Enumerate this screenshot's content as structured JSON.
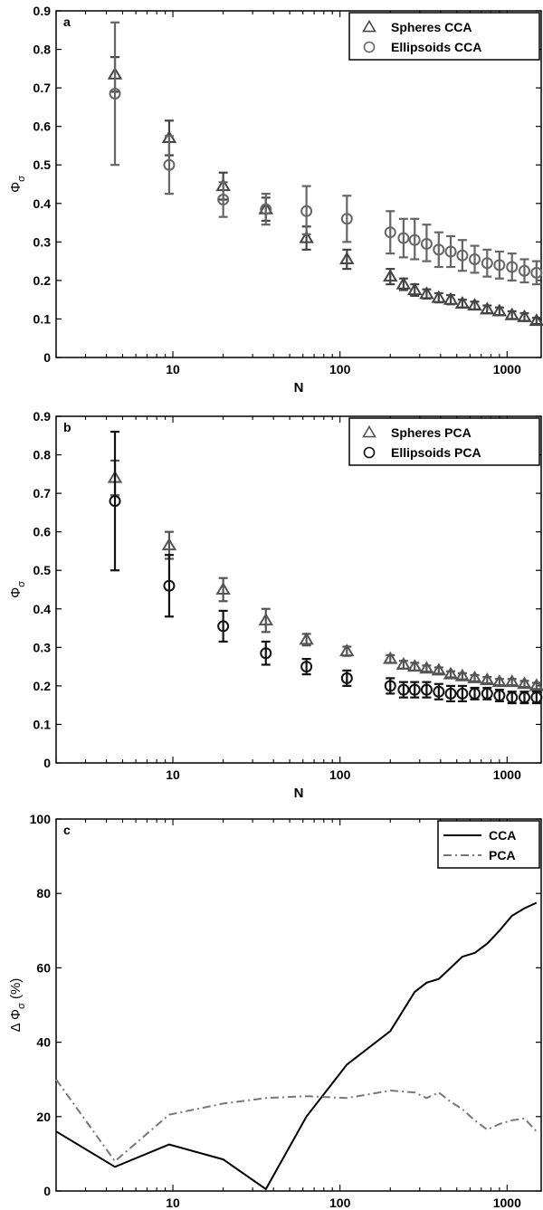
{
  "chart_data": [
    {
      "panel_label": "a",
      "type": "scatter",
      "xscale": "log",
      "xlim": [
        2,
        1600
      ],
      "ylim": [
        0,
        0.9
      ],
      "xlabel": "N",
      "ylabel_main": "Φ",
      "ylabel_sub": "σ",
      "xticks": [
        10,
        100,
        1000
      ],
      "xtick_labels": [
        "10",
        "100",
        "1000"
      ],
      "yticks": [
        0,
        0.1,
        0.2,
        0.3,
        0.4,
        0.5,
        0.6,
        0.7,
        0.8,
        0.9
      ],
      "ytick_labels": [
        "0",
        "0.1",
        "0.2",
        "0.3",
        "0.4",
        "0.5",
        "0.6",
        "0.7",
        "0.8",
        "0.9"
      ],
      "legend_position": "top-right",
      "grid": false,
      "series": [
        {
          "name": "Spheres CCA",
          "marker": "triangle",
          "color": "#444444",
          "x": [
            4.5,
            9.5,
            20,
            36,
            63,
            110,
            200,
            240,
            280,
            330,
            390,
            460,
            540,
            640,
            760,
            900,
            1070,
            1270,
            1500
          ],
          "y": [
            0.735,
            0.57,
            0.445,
            0.385,
            0.31,
            0.255,
            0.21,
            0.19,
            0.175,
            0.165,
            0.155,
            0.15,
            0.14,
            0.135,
            0.125,
            0.12,
            0.11,
            0.105,
            0.095
          ],
          "err": [
            0.045,
            0.045,
            0.035,
            0.03,
            0.03,
            0.025,
            0.02,
            0.015,
            0.015,
            0.012,
            0.012,
            0.012,
            0.01,
            0.01,
            0.01,
            0.01,
            0.01,
            0.01,
            0.008
          ]
        },
        {
          "name": "Ellipsoids CCA",
          "marker": "circle",
          "color": "#666666",
          "x": [
            4.5,
            9.5,
            20,
            36,
            63,
            110,
            200,
            240,
            280,
            330,
            390,
            460,
            540,
            640,
            760,
            900,
            1070,
            1270,
            1500
          ],
          "y": [
            0.685,
            0.5,
            0.41,
            0.385,
            0.38,
            0.36,
            0.325,
            0.31,
            0.305,
            0.295,
            0.28,
            0.275,
            0.265,
            0.255,
            0.245,
            0.24,
            0.235,
            0.225,
            0.22
          ],
          "err_low": [
            0.185,
            0.075,
            0.045,
            0.04,
            0.06,
            0.06,
            0.055,
            0.05,
            0.05,
            0.045,
            0.045,
            0.04,
            0.04,
            0.035,
            0.035,
            0.035,
            0.035,
            0.03,
            0.03
          ],
          "err_high": [
            0.185,
            0.075,
            0.045,
            0.04,
            0.065,
            0.06,
            0.055,
            0.05,
            0.055,
            0.05,
            0.045,
            0.04,
            0.04,
            0.035,
            0.035,
            0.035,
            0.035,
            0.03,
            0.03
          ]
        }
      ]
    },
    {
      "panel_label": "b",
      "type": "scatter",
      "xscale": "log",
      "xlim": [
        2,
        1600
      ],
      "ylim": [
        0,
        0.9
      ],
      "xlabel": "N",
      "ylabel_main": "Φ",
      "ylabel_sub": "σ",
      "xticks": [
        10,
        100,
        1000
      ],
      "xtick_labels": [
        "10",
        "100",
        "1000"
      ],
      "yticks": [
        0,
        0.1,
        0.2,
        0.3,
        0.4,
        0.5,
        0.6,
        0.7,
        0.8,
        0.9
      ],
      "ytick_labels": [
        "0",
        "0.1",
        "0.2",
        "0.3",
        "0.4",
        "0.5",
        "0.6",
        "0.7",
        "0.8",
        "0.9"
      ],
      "legend_position": "top-right",
      "grid": false,
      "series": [
        {
          "name": "Spheres PCA",
          "marker": "triangle",
          "color": "#555555",
          "x": [
            4.5,
            9.5,
            20,
            36,
            63,
            110,
            200,
            240,
            280,
            330,
            390,
            460,
            540,
            640,
            760,
            900,
            1070,
            1270,
            1500
          ],
          "y": [
            0.74,
            0.565,
            0.45,
            0.37,
            0.32,
            0.29,
            0.27,
            0.255,
            0.25,
            0.245,
            0.24,
            0.23,
            0.225,
            0.22,
            0.215,
            0.21,
            0.21,
            0.205,
            0.2
          ],
          "err": [
            0.045,
            0.035,
            0.03,
            0.03,
            0.015,
            0.012,
            0.01,
            0.01,
            0.01,
            0.008,
            0.008,
            0.008,
            0.008,
            0.008,
            0.008,
            0.008,
            0.008,
            0.008,
            0.008
          ]
        },
        {
          "name": "Ellipsoids PCA",
          "marker": "circle",
          "color": "#111111",
          "x": [
            4.5,
            9.5,
            20,
            36,
            63,
            110,
            200,
            240,
            280,
            330,
            390,
            460,
            540,
            640,
            760,
            900,
            1070,
            1270,
            1500
          ],
          "y": [
            0.68,
            0.46,
            0.355,
            0.285,
            0.25,
            0.22,
            0.2,
            0.19,
            0.19,
            0.19,
            0.185,
            0.18,
            0.18,
            0.18,
            0.18,
            0.175,
            0.17,
            0.17,
            0.17
          ],
          "err_low": [
            0.18,
            0.08,
            0.04,
            0.03,
            0.02,
            0.02,
            0.02,
            0.02,
            0.02,
            0.02,
            0.02,
            0.02,
            0.02,
            0.015,
            0.015,
            0.015,
            0.015,
            0.015,
            0.015
          ],
          "err_high": [
            0.18,
            0.08,
            0.04,
            0.03,
            0.02,
            0.02,
            0.02,
            0.02,
            0.02,
            0.02,
            0.02,
            0.02,
            0.02,
            0.015,
            0.015,
            0.015,
            0.015,
            0.015,
            0.015
          ]
        }
      ]
    },
    {
      "panel_label": "c",
      "type": "line",
      "xscale": "log",
      "xlim": [
        2,
        1600
      ],
      "ylim": [
        0,
        100
      ],
      "xlabel": "N",
      "ylabel_main": "Δ Φ",
      "ylabel_sub": "σ",
      "ylabel_suffix": " (%)",
      "xticks": [
        10,
        100,
        1000
      ],
      "xtick_labels": [
        "10",
        "100",
        "1000"
      ],
      "yticks": [
        0,
        20,
        40,
        60,
        80,
        100
      ],
      "ytick_labels": [
        "0",
        "20",
        "40",
        "60",
        "80",
        "100"
      ],
      "legend_position": "top-right",
      "grid": false,
      "series": [
        {
          "name": "CCA",
          "style": "solid",
          "color": "#000000",
          "x": [
            2,
            4.5,
            9.5,
            20,
            36,
            63,
            110,
            200,
            280,
            330,
            390,
            460,
            540,
            640,
            760,
            900,
            1070,
            1270,
            1500
          ],
          "y": [
            16,
            6.5,
            12.5,
            8.5,
            0.5,
            20,
            34,
            43,
            53.5,
            56,
            57,
            60,
            63,
            64,
            66.5,
            70,
            74,
            76,
            77.5
          ]
        },
        {
          "name": "PCA",
          "style": "dash-dot",
          "color": "#777777",
          "x": [
            2,
            4.5,
            9.5,
            20,
            36,
            63,
            110,
            200,
            280,
            330,
            390,
            460,
            540,
            640,
            760,
            900,
            1070,
            1270,
            1500
          ],
          "y": [
            30,
            8,
            20.5,
            23.5,
            25,
            25.5,
            25,
            27,
            26.5,
            25,
            26.5,
            24,
            22,
            19,
            16.5,
            18,
            19,
            19.5,
            16
          ]
        }
      ]
    }
  ]
}
